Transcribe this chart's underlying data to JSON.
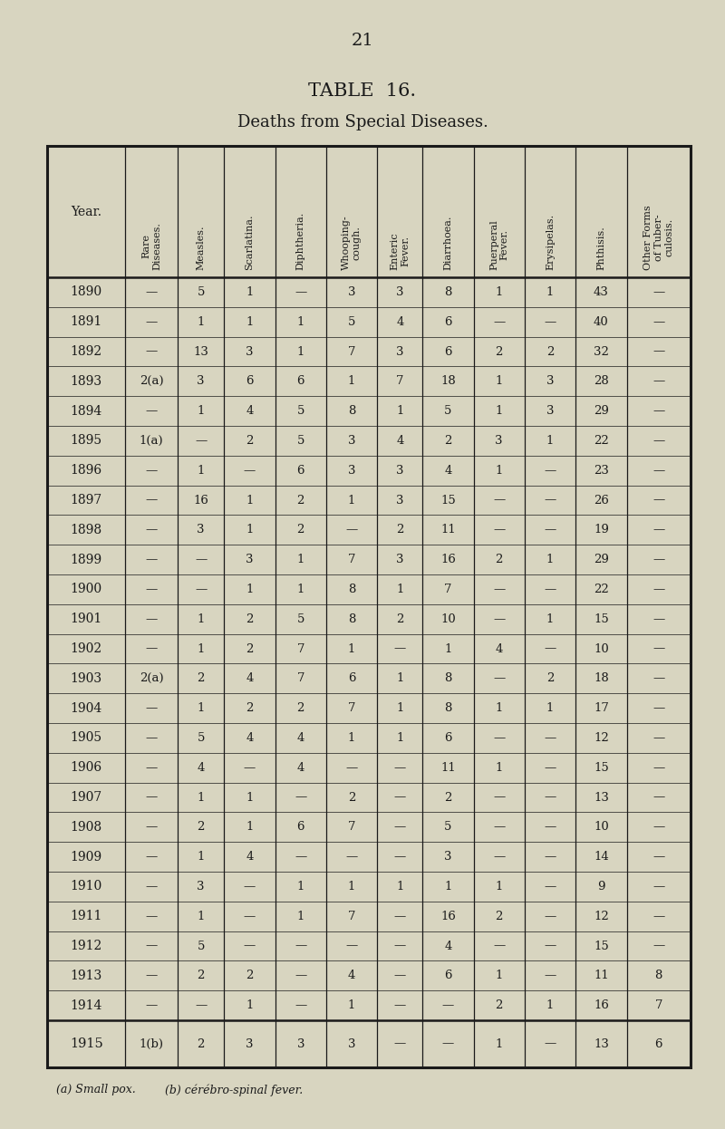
{
  "page_number": "21",
  "title": "TABLE  16.",
  "subtitle": "Deaths from Special Diseases.",
  "background_color": "#d8d5c0",
  "text_color": "#1a1a1a",
  "columns": [
    "Year.",
    "Rare\nDiseases.",
    "Measles.",
    "Scarlatina.",
    "Diphtheria.",
    "Whooping-\ncough.",
    "Enteric\nFever.",
    "Diarrhoea.",
    "Puerperal\nFever.",
    "Erysipelas.",
    "Phthisis.",
    "Other Forms\nof Tuber-\nculosis."
  ],
  "rows": [
    [
      "1890",
      "—",
      "5",
      "1",
      "—",
      "3",
      "3",
      "8",
      "1",
      "1",
      "43",
      "—"
    ],
    [
      "1891",
      "—",
      "1",
      "1",
      "1",
      "5",
      "4",
      "6",
      "—",
      "—",
      "40",
      "—"
    ],
    [
      "1892",
      "—",
      "13",
      "3",
      "1",
      "7",
      "3",
      "6",
      "2",
      "2",
      "32",
      "—"
    ],
    [
      "1893",
      "2(a)",
      "3",
      "6",
      "6",
      "1",
      "7",
      "18",
      "1",
      "3",
      "28",
      "—"
    ],
    [
      "1894",
      "—",
      "1",
      "4",
      "5",
      "8",
      "1",
      "5",
      "1",
      "3",
      "29",
      "—"
    ],
    [
      "1895",
      "1(a)",
      "—",
      "2",
      "5",
      "3",
      "4",
      "2",
      "3",
      "1",
      "22",
      "—"
    ],
    [
      "1896",
      "—",
      "1",
      "—",
      "6",
      "3",
      "3",
      "4",
      "1",
      "—",
      "23",
      "—"
    ],
    [
      "1897",
      "—",
      "16",
      "1",
      "2",
      "1",
      "3",
      "15",
      "—",
      "—",
      "26",
      "—"
    ],
    [
      "1898",
      "—",
      "3",
      "1",
      "2",
      "—",
      "2",
      "11",
      "—",
      "—",
      "19",
      "—"
    ],
    [
      "1899",
      "—",
      "—",
      "3",
      "1",
      "7",
      "3",
      "16",
      "2",
      "1",
      "29",
      "—"
    ],
    [
      "1900",
      "—",
      "—",
      "1",
      "1",
      "8",
      "1",
      "7",
      "—",
      "—",
      "22",
      "—"
    ],
    [
      "1901",
      "—",
      "1",
      "2",
      "5",
      "8",
      "2",
      "10",
      "—",
      "1",
      "15",
      "—"
    ],
    [
      "1902",
      "—",
      "1",
      "2",
      "7",
      "1",
      "—",
      "1",
      "4",
      "—",
      "10",
      "—"
    ],
    [
      "1903",
      "2(a)",
      "2",
      "4",
      "7",
      "6",
      "1",
      "8",
      "—",
      "2",
      "18",
      "—"
    ],
    [
      "1904",
      "—",
      "1",
      "2",
      "2",
      "7",
      "1",
      "8",
      "1",
      "1",
      "17",
      "—"
    ],
    [
      "1905",
      "—",
      "5",
      "4",
      "4",
      "1",
      "1",
      "6",
      "—",
      "—",
      "12",
      "—"
    ],
    [
      "1906",
      "—",
      "4",
      "—",
      "4",
      "—",
      "—",
      "11",
      "1",
      "—",
      "15",
      "—"
    ],
    [
      "1907",
      "—",
      "1",
      "1",
      "—",
      "2",
      "—",
      "2",
      "—",
      "—",
      "13",
      "—"
    ],
    [
      "1908",
      "—",
      "2",
      "1",
      "6",
      "7",
      "—",
      "5",
      "—",
      "—",
      "10",
      "—"
    ],
    [
      "1909",
      "—",
      "1",
      "4",
      "—",
      "—",
      "—",
      "3",
      "—",
      "—",
      "14",
      "—"
    ],
    [
      "1910",
      "—",
      "3",
      "—",
      "1",
      "1",
      "1",
      "1",
      "1",
      "—",
      "9",
      "—"
    ],
    [
      "1911",
      "—",
      "1",
      "—",
      "1",
      "7",
      "—",
      "16",
      "2",
      "—",
      "12",
      "—"
    ],
    [
      "1912",
      "—",
      "5",
      "—",
      "—",
      "—",
      "—",
      "4",
      "—",
      "—",
      "15",
      "—"
    ],
    [
      "1913",
      "—",
      "2",
      "2",
      "—",
      "4",
      "—",
      "6",
      "1",
      "—",
      "11",
      "8"
    ],
    [
      "1914",
      "—",
      "—",
      "1",
      "—",
      "1",
      "—",
      "—",
      "2",
      "1",
      "16",
      "7"
    ]
  ],
  "last_row": [
    "1915",
    "1(b)",
    "2",
    "3",
    "3",
    "3",
    "—",
    "—",
    "1",
    "—",
    "13",
    "6"
  ],
  "footnote_a": "(a) Small pox.",
  "footnote_b": "(b) cérébro-spinal fever."
}
